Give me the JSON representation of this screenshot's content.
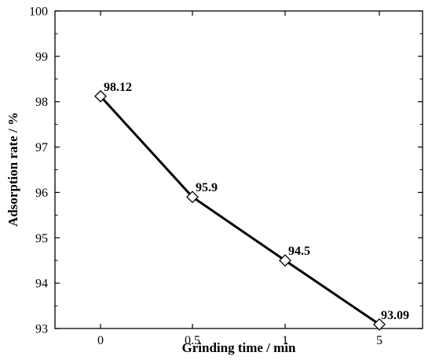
{
  "chart_data": {
    "type": "line",
    "x": [
      "0",
      "0.5",
      "1",
      "5"
    ],
    "series": [
      {
        "values": [
          98.12,
          95.9,
          94.5,
          93.09
        ],
        "color": "#000000",
        "marker": "diamond-open"
      }
    ],
    "data_labels": [
      "98.12",
      "95.9",
      "94.5",
      "93.09"
    ],
    "xlabel": "Grinding time / min",
    "ylabel": "Adsorption rate / %",
    "ylim": [
      93,
      100
    ],
    "yticks": [
      "93",
      "94",
      "95",
      "96",
      "97",
      "98",
      "99",
      "100"
    ],
    "grid": false,
    "axis_box": true,
    "categorical_x": true
  }
}
